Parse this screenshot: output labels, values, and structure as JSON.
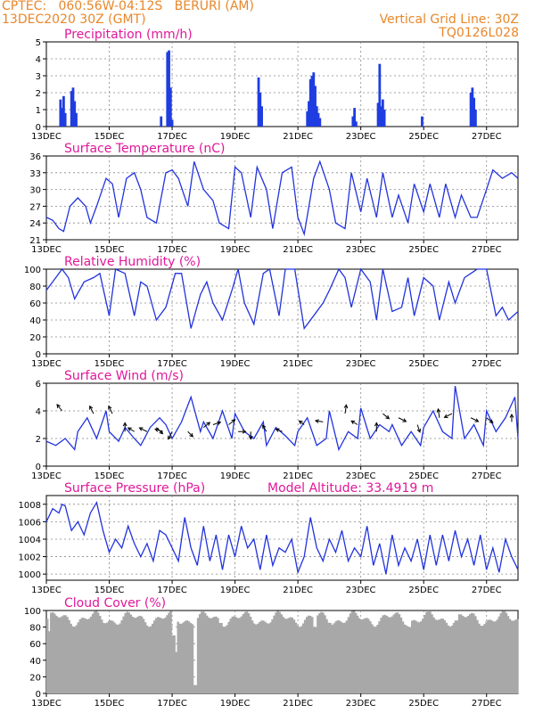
{
  "header": {
    "line1": "CPTEC:   060:56W-04:12S   BERURI (AM)",
    "line2": "13DEC2020 30Z (GMT)",
    "right1": "Vertical Grid Line: 30Z",
    "right2": "TQ0126L028"
  },
  "colors": {
    "header": "#e8872a",
    "title": "#e0189a",
    "line": "#2233dd",
    "bars": "#1f3de0",
    "cloud": "#a8a8a8"
  },
  "x_tick_labels": [
    "13DEC",
    "15DEC",
    "17DEC",
    "19DEC",
    "21DEC",
    "23DEC",
    "25DEC",
    "27DEC"
  ],
  "chart_data": [
    {
      "type": "bar",
      "title": "Precipitation (mm/h)",
      "ylim": [
        0,
        5
      ],
      "yticks": [
        0,
        1,
        2,
        3,
        4,
        5
      ],
      "x_unit": "days since 13DEC",
      "events": [
        [
          0.45,
          1.6
        ],
        [
          0.5,
          1.1
        ],
        [
          0.55,
          1.8
        ],
        [
          0.6,
          0.8
        ],
        [
          0.8,
          2.1
        ],
        [
          0.85,
          2.3
        ],
        [
          0.9,
          1.5
        ],
        [
          0.95,
          0.8
        ],
        [
          3.65,
          0.6
        ],
        [
          3.85,
          4.4
        ],
        [
          3.9,
          4.5
        ],
        [
          3.95,
          2.3
        ],
        [
          4.0,
          0.4
        ],
        [
          6.75,
          2.9
        ],
        [
          6.8,
          2.0
        ],
        [
          6.85,
          1.2
        ],
        [
          8.3,
          0.9
        ],
        [
          8.35,
          1.5
        ],
        [
          8.4,
          2.8
        ],
        [
          8.45,
          3.0
        ],
        [
          8.5,
          3.2
        ],
        [
          8.55,
          2.4
        ],
        [
          8.6,
          1.2
        ],
        [
          8.65,
          0.8
        ],
        [
          8.7,
          0.5
        ],
        [
          9.75,
          0.6
        ],
        [
          9.8,
          1.1
        ],
        [
          9.85,
          0.3
        ],
        [
          10.55,
          1.4
        ],
        [
          10.6,
          3.7
        ],
        [
          10.65,
          1.2
        ],
        [
          10.7,
          1.6
        ],
        [
          10.75,
          1.0
        ],
        [
          11.95,
          0.6
        ],
        [
          13.5,
          2.0
        ],
        [
          13.55,
          2.3
        ],
        [
          13.6,
          1.7
        ],
        [
          13.65,
          1.0
        ]
      ]
    },
    {
      "type": "line",
      "title": "Surface Temperature (nC)",
      "ylim": [
        21,
        36
      ],
      "yticks": [
        21,
        24,
        27,
        30,
        33,
        36
      ],
      "x": [
        0,
        0.2,
        0.4,
        0.55,
        0.75,
        1.0,
        1.25,
        1.4,
        1.6,
        1.9,
        2.1,
        2.3,
        2.55,
        2.8,
        3.0,
        3.2,
        3.5,
        3.8,
        4.0,
        4.2,
        4.5,
        4.7,
        5.0,
        5.3,
        5.5,
        5.8,
        6.0,
        6.2,
        6.5,
        6.7,
        7.0,
        7.2,
        7.5,
        7.8,
        8.0,
        8.2,
        8.5,
        8.7,
        9.0,
        9.2,
        9.5,
        9.7,
        10.0,
        10.2,
        10.5,
        10.7,
        11.0,
        11.2,
        11.5,
        11.7,
        12.0,
        12.2,
        12.5,
        12.7,
        13.0,
        13.2,
        13.5,
        13.7,
        14.0,
        14.2,
        14.5,
        14.8,
        15.0
      ],
      "values": [
        25,
        24.5,
        23,
        22.5,
        27,
        28.5,
        27,
        24,
        27,
        32,
        31,
        25,
        32,
        33,
        30,
        25,
        24,
        33,
        33.5,
        32,
        27,
        35,
        30,
        28,
        24,
        23,
        34,
        33,
        25,
        34,
        30,
        23,
        33,
        34,
        25,
        22,
        32,
        35,
        30,
        24,
        23,
        33,
        26,
        32,
        25,
        33,
        25,
        29,
        24,
        31,
        26,
        31,
        25,
        31,
        25,
        29,
        25,
        25,
        30,
        33.5,
        32,
        33,
        32
      ]
    },
    {
      "type": "line",
      "title": "Relative Humidity (%)",
      "ylim": [
        0,
        100
      ],
      "yticks": [
        0,
        20,
        40,
        60,
        80,
        100
      ],
      "x": [
        0,
        0.3,
        0.5,
        0.7,
        0.9,
        1.2,
        1.5,
        1.7,
        2.0,
        2.2,
        2.5,
        2.8,
        3.0,
        3.2,
        3.5,
        3.8,
        4.1,
        4.3,
        4.6,
        4.9,
        5.1,
        5.3,
        5.6,
        5.9,
        6.1,
        6.3,
        6.6,
        6.9,
        7.1,
        7.4,
        7.6,
        7.9,
        8.2,
        8.5,
        8.8,
        9.0,
        9.3,
        9.5,
        9.7,
        10.0,
        10.3,
        10.5,
        10.7,
        11.0,
        11.3,
        11.5,
        11.7,
        12.0,
        12.3,
        12.5,
        12.8,
        13.0,
        13.3,
        13.5,
        13.7,
        14.0,
        14.3,
        14.5,
        14.7,
        15.0
      ],
      "values": [
        75,
        90,
        100,
        90,
        65,
        85,
        90,
        95,
        45,
        100,
        95,
        45,
        85,
        80,
        40,
        55,
        95,
        95,
        30,
        70,
        85,
        60,
        40,
        75,
        100,
        60,
        35,
        95,
        100,
        45,
        100,
        100,
        30,
        45,
        60,
        75,
        100,
        90,
        55,
        100,
        85,
        40,
        100,
        50,
        55,
        90,
        45,
        90,
        80,
        40,
        85,
        60,
        90,
        95,
        100,
        100,
        45,
        55,
        40,
        50
      ]
    },
    {
      "type": "line",
      "title": "Surface Wind (m/s)",
      "ylim": [
        0,
        6
      ],
      "yticks": [
        0,
        2,
        4,
        6
      ],
      "x": [
        0,
        0.3,
        0.6,
        0.9,
        1.0,
        1.3,
        1.6,
        1.9,
        2.0,
        2.3,
        2.5,
        2.8,
        3.0,
        3.3,
        3.6,
        3.8,
        4.0,
        4.3,
        4.6,
        4.9,
        5.0,
        5.3,
        5.6,
        5.9,
        6.0,
        6.3,
        6.6,
        6.9,
        7.0,
        7.3,
        7.6,
        7.9,
        8.0,
        8.3,
        8.6,
        8.9,
        9.0,
        9.3,
        9.6,
        9.9,
        10.0,
        10.3,
        10.6,
        10.9,
        11.0,
        11.3,
        11.6,
        11.9,
        12.0,
        12.3,
        12.6,
        12.9,
        13.0,
        13.3,
        13.6,
        13.9,
        14.0,
        14.3,
        14.6,
        14.9,
        15.0
      ],
      "values": [
        1.8,
        1.5,
        2.0,
        1.2,
        2.5,
        3.5,
        2.0,
        4.0,
        2.5,
        1.8,
        2.8,
        2.0,
        1.5,
        2.8,
        3.5,
        3.0,
        2.0,
        3.2,
        5.0,
        2.5,
        3.2,
        2.0,
        4.0,
        2.0,
        3.8,
        2.5,
        2.0,
        3.2,
        1.5,
        2.8,
        2.2,
        1.5,
        2.5,
        3.5,
        1.5,
        2.0,
        4.0,
        1.2,
        2.5,
        2.0,
        4.2,
        2.0,
        3.0,
        2.5,
        3.0,
        1.5,
        2.5,
        1.5,
        2.8,
        4.0,
        2.5,
        2.0,
        5.8,
        2.0,
        3.0,
        1.5,
        4.0,
        2.5,
        3.5,
        5.0,
        2.0
      ],
      "arrows": [
        {
          "x": 0.5,
          "v": 4.0,
          "dir": [
            -0.4,
            -0.5
          ]
        },
        {
          "x": 1.5,
          "v": 3.8,
          "dir": [
            -0.3,
            -0.6
          ]
        },
        {
          "x": 2.1,
          "v": 3.8,
          "dir": [
            -0.3,
            -0.6
          ]
        },
        {
          "x": 2.5,
          "v": 2.5,
          "dir": [
            0.0,
            -0.7
          ]
        },
        {
          "x": 2.8,
          "v": 2.5,
          "dir": [
            -0.5,
            -0.3
          ]
        },
        {
          "x": 3.2,
          "v": 2.5,
          "dir": [
            -0.6,
            -0.3
          ]
        },
        {
          "x": 3.5,
          "v": 2.8,
          "dir": [
            0.5,
            0.5
          ]
        },
        {
          "x": 3.7,
          "v": 2.5,
          "dir": [
            -0.6,
            -0.2
          ]
        },
        {
          "x": 4.0,
          "v": 2.5,
          "dir": [
            -0.3,
            0.6
          ]
        },
        {
          "x": 4.5,
          "v": 2.5,
          "dir": [
            0.4,
            0.4
          ]
        },
        {
          "x": 5.0,
          "v": 2.8,
          "dir": [
            0.5,
            -0.4
          ]
        },
        {
          "x": 5.3,
          "v": 3.0,
          "dir": [
            0.6,
            -0.2
          ]
        },
        {
          "x": 5.8,
          "v": 3.0,
          "dir": [
            0.5,
            -0.4
          ]
        },
        {
          "x": 6.1,
          "v": 2.5,
          "dir": [
            0.6,
            0.0
          ]
        },
        {
          "x": 6.5,
          "v": 2.5,
          "dir": [
            0.0,
            0.6
          ]
        },
        {
          "x": 7.0,
          "v": 2.5,
          "dir": [
            -0.3,
            -0.5
          ]
        },
        {
          "x": 7.5,
          "v": 2.5,
          "dir": [
            -0.5,
            -0.2
          ]
        },
        {
          "x": 8.2,
          "v": 3.0,
          "dir": [
            -0.4,
            -0.3
          ]
        },
        {
          "x": 8.8,
          "v": 3.2,
          "dir": [
            -0.6,
            -0.1
          ]
        },
        {
          "x": 9.5,
          "v": 3.8,
          "dir": [
            0.1,
            -0.7
          ]
        },
        {
          "x": 9.9,
          "v": 3.0,
          "dir": [
            -0.5,
            -0.3
          ]
        },
        {
          "x": 10.5,
          "v": 2.5,
          "dir": [
            0.0,
            -0.7
          ]
        },
        {
          "x": 10.7,
          "v": 3.8,
          "dir": [
            0.5,
            0.4
          ]
        },
        {
          "x": 11.2,
          "v": 3.5,
          "dir": [
            0.6,
            0.3
          ]
        },
        {
          "x": 11.8,
          "v": 3.0,
          "dir": [
            0.2,
            0.6
          ]
        },
        {
          "x": 12.5,
          "v": 3.5,
          "dir": [
            -0.1,
            -0.7
          ]
        },
        {
          "x": 12.9,
          "v": 3.8,
          "dir": [
            -0.6,
            0.3
          ]
        },
        {
          "x": 13.5,
          "v": 3.5,
          "dir": [
            0.6,
            0.3
          ]
        },
        {
          "x": 14.0,
          "v": 3.5,
          "dir": [
            0.5,
            0.4
          ]
        },
        {
          "x": 14.8,
          "v": 3.2,
          "dir": [
            0.0,
            -0.6
          ]
        }
      ]
    },
    {
      "type": "line",
      "title": "Surface Pressure (hPa)",
      "annotation": "Model Altitude: 33.4919 m",
      "ylim": [
        999.3,
        1009
      ],
      "yticks": [
        1000,
        1002,
        1004,
        1006,
        1008
      ],
      "x": [
        0,
        0.2,
        0.4,
        0.5,
        0.6,
        0.8,
        1.0,
        1.2,
        1.4,
        1.6,
        1.8,
        2.0,
        2.2,
        2.4,
        2.6,
        2.8,
        3.0,
        3.2,
        3.4,
        3.6,
        3.8,
        4.0,
        4.2,
        4.4,
        4.6,
        4.8,
        5.0,
        5.2,
        5.4,
        5.6,
        5.8,
        6.0,
        6.2,
        6.4,
        6.6,
        6.8,
        7.0,
        7.2,
        7.4,
        7.6,
        7.8,
        8.0,
        8.2,
        8.4,
        8.6,
        8.8,
        9.0,
        9.2,
        9.4,
        9.6,
        9.8,
        10.0,
        10.2,
        10.4,
        10.6,
        10.8,
        11.0,
        11.2,
        11.4,
        11.6,
        11.8,
        12.0,
        12.2,
        12.4,
        12.6,
        12.8,
        13.0,
        13.2,
        13.4,
        13.6,
        13.8,
        14.0,
        14.2,
        14.4,
        14.6,
        14.8,
        15.0
      ],
      "values": [
        1006,
        1007.5,
        1007,
        1008,
        1007.8,
        1005,
        1006,
        1004.5,
        1007,
        1008.2,
        1005,
        1002.5,
        1004,
        1003,
        1005.5,
        1003.5,
        1002,
        1003.5,
        1001.5,
        1005,
        1004.5,
        1003,
        1001.5,
        1006.5,
        1003,
        1001,
        1005.5,
        1001.5,
        1004.5,
        1000.5,
        1004.5,
        1002,
        1005.5,
        1003,
        1004,
        1000.5,
        1004.5,
        1001,
        1003,
        1002.5,
        1004,
        1000.2,
        1002,
        1006.5,
        1003,
        1001.5,
        1004,
        1002.5,
        1005,
        1001.5,
        1003,
        1002,
        1005.5,
        1001,
        1003.5,
        1000,
        1004.5,
        1001,
        1003,
        1001.5,
        1004,
        1000.5,
        1004.5,
        1001,
        1004.5,
        1001.5,
        1005,
        1002,
        1004,
        1001,
        1004.5,
        1000.5,
        1003,
        1000.2,
        1004,
        1002,
        1000.5
      ]
    },
    {
      "type": "area",
      "title": "Cloud Cover (%)",
      "ylim": [
        0,
        100
      ],
      "yticks": [
        0,
        20,
        40,
        60,
        80,
        100
      ],
      "base_level": 90,
      "dips": [
        [
          0.05,
          75
        ],
        [
          1.8,
          85
        ],
        [
          4.0,
          70
        ],
        [
          4.1,
          50
        ],
        [
          4.7,
          10
        ],
        [
          5.5,
          85
        ],
        [
          8.5,
          80
        ],
        [
          9.0,
          85
        ],
        [
          11.5,
          80
        ],
        [
          13.0,
          88
        ]
      ]
    }
  ]
}
